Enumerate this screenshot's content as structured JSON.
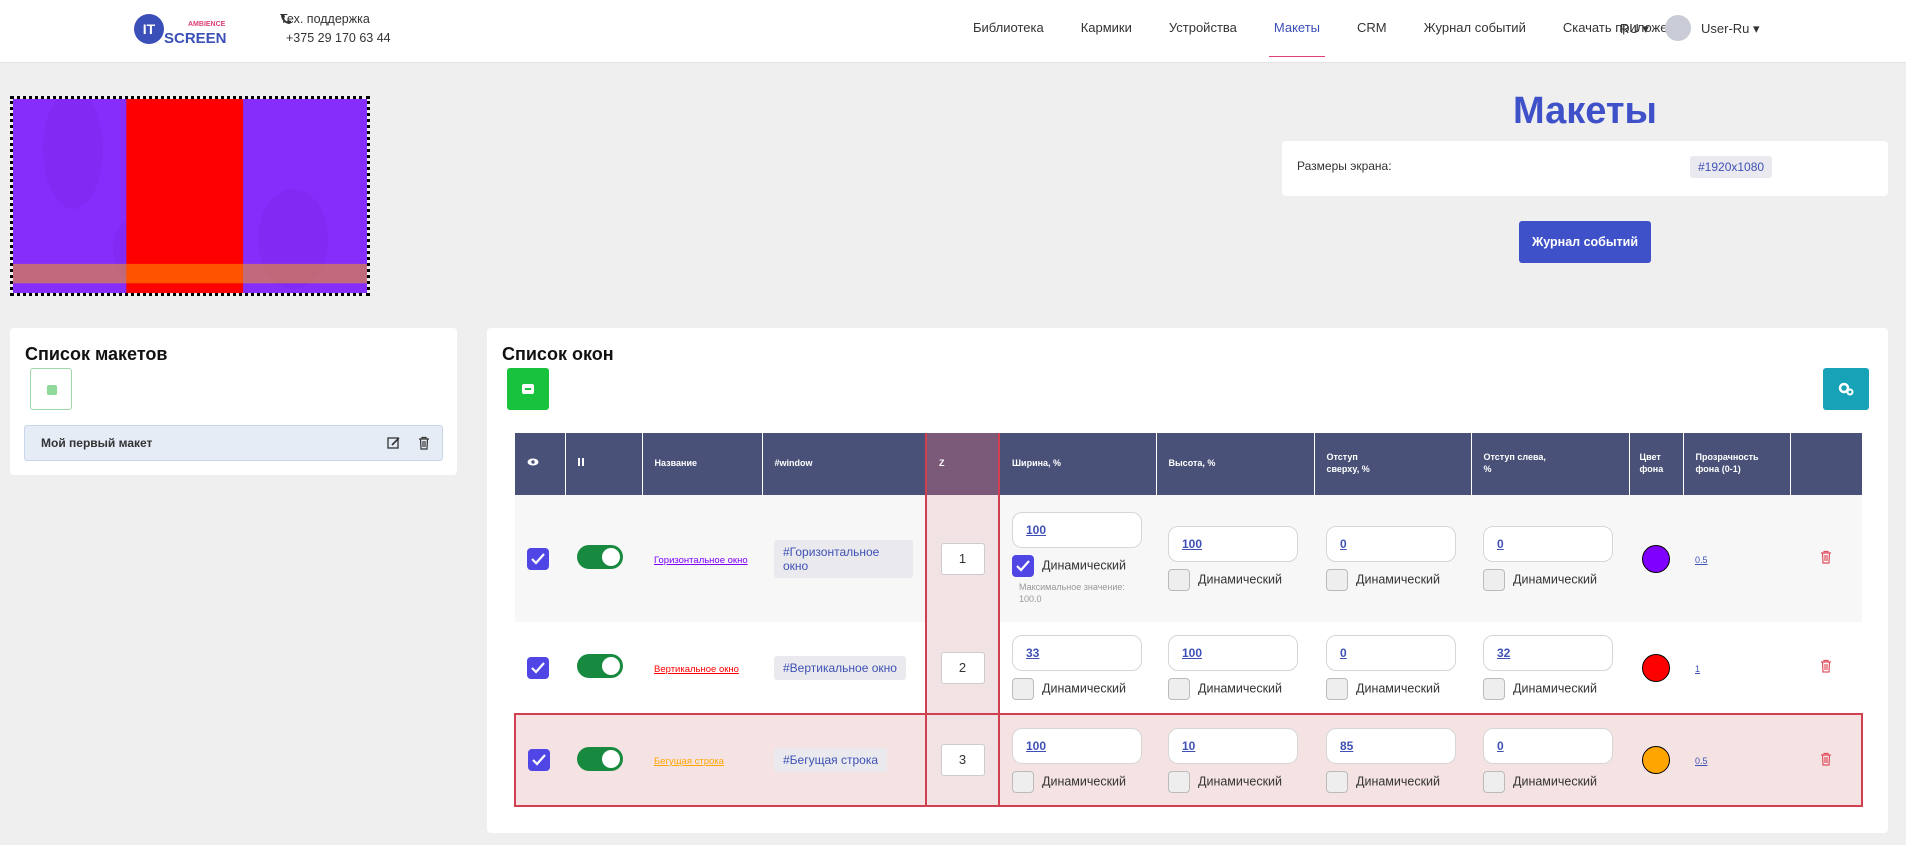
{
  "header": {
    "logo_top": "IT",
    "logo_sub": "AMBIENCE",
    "logo_main": "SCREEN",
    "support_label": "Тех. поддержка",
    "support_phone": "+375 29 170 63 44",
    "nav": [
      "Библиотека",
      "Кармики",
      "Устройства",
      "Макеты",
      "CRM",
      "Журнал событий",
      "Скачать приложение"
    ],
    "active_nav": 3,
    "lang": "RU",
    "user": "User-Ru"
  },
  "page": {
    "title": "Макеты",
    "screen_size_label": "Размеры экрана:",
    "screen_size": "#1920x1080",
    "journal_button": "Журнал событий",
    "preview_background": "#8b5cf6"
  },
  "layouts_panel": {
    "title": "Список макетов",
    "items": [
      {
        "name": "Мой первый макет"
      }
    ]
  },
  "windows_panel": {
    "title": "Список окон",
    "headers": {
      "name": "Название",
      "window": "#window",
      "z": "Z",
      "width": "Ширина, %",
      "height": "Высота, %",
      "top": "Отступ сверху, %",
      "left": "Отступ слева, %",
      "color": "Цвет фона",
      "opacity": "Прозрачность фона (0-1)"
    },
    "dynamic_label": "Динамический",
    "rows": [
      {
        "name": "Горизонтальное окно",
        "window": "#Горизонтальное окно",
        "z": 1,
        "width": 100,
        "height": 100,
        "top": 0,
        "left": 0,
        "dynamic": [
          true,
          false,
          false,
          false
        ],
        "width_note": "Максимальное значение: 100.0",
        "color": "#7f00ff",
        "opacity": 0.5,
        "visible": true,
        "enabled": true,
        "selected": false
      },
      {
        "name": "Вертикальное окно",
        "window": "#Вертикальное окно",
        "z": 2,
        "width": 33,
        "height": 100,
        "top": 0,
        "left": 32,
        "dynamic": [
          false,
          false,
          false,
          false
        ],
        "color": "#ff0000",
        "opacity": 1,
        "visible": true,
        "enabled": true,
        "selected": false
      },
      {
        "name": "Бегущая строка",
        "window": "#Бегущая строка",
        "z": 3,
        "width": 100,
        "height": 10,
        "top": 85,
        "left": 0,
        "dynamic": [
          false,
          false,
          false,
          false
        ],
        "color": "#ffa500",
        "opacity": 0.5,
        "visible": true,
        "enabled": true,
        "selected": true
      }
    ]
  }
}
